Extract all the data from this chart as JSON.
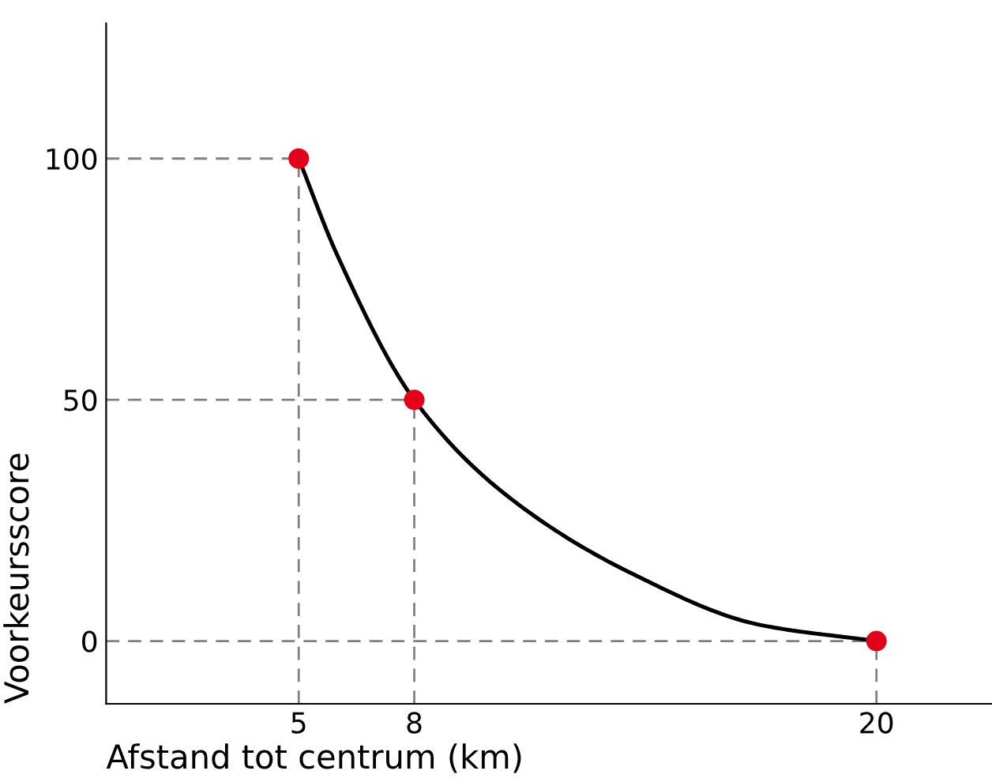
{
  "chart_data": {
    "type": "scatter",
    "xlabel": "Afstand tot centrum (km)",
    "ylabel": "Voorkeursscore",
    "xlim": [
      0,
      23
    ],
    "ylim": [
      -13,
      128
    ],
    "xticks": [
      5,
      8,
      20
    ],
    "yticks": [
      0,
      50,
      100
    ],
    "ref_lines": [
      {
        "axis": "y",
        "value": 100,
        "color": "#808080",
        "line_style": "dashed"
      },
      {
        "axis": "y",
        "value": 50,
        "color": "#808080",
        "line_style": "dashed"
      },
      {
        "axis": "y",
        "value": 0,
        "color": "#808080",
        "line_style": "dashed"
      },
      {
        "axis": "x",
        "value": 5,
        "color": "#808080",
        "line_style": "dashed"
      },
      {
        "axis": "x",
        "value": 8,
        "color": "#808080",
        "line_style": "dashed"
      },
      {
        "axis": "x",
        "value": 20,
        "color": "#808080",
        "line_style": "dashed"
      }
    ],
    "series": [
      {
        "type": "line",
        "color": "#000000",
        "x": [
          5,
          6,
          8,
          10.35,
          13.65,
          16.95,
          20
        ],
        "values": [
          100,
          80,
          50,
          30.5,
          14,
          3.4,
          0
        ]
      },
      {
        "color": "#e2001a",
        "marker": "circle",
        "x": [
          5,
          8,
          20
        ],
        "values": [
          100,
          50,
          0
        ]
      }
    ]
  }
}
